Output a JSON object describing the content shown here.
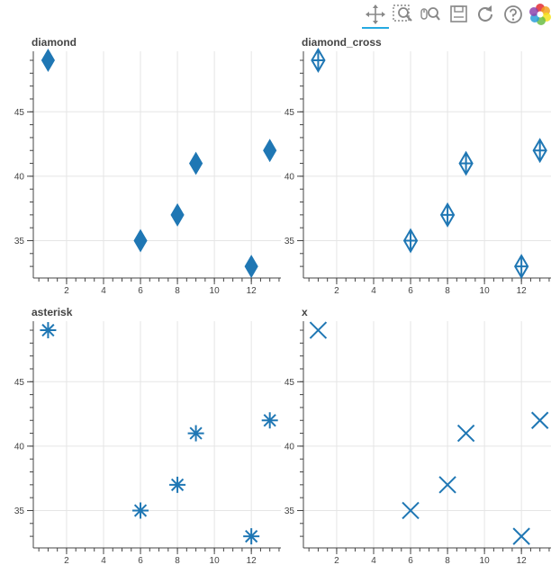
{
  "toolbar": {
    "tools": [
      {
        "id": "pan",
        "icon": "pan-icon",
        "active": true
      },
      {
        "id": "box-zoom",
        "icon": "box-zoom-icon",
        "active": false
      },
      {
        "id": "wheel-zoom",
        "icon": "wheel-zoom-icon",
        "active": false
      },
      {
        "id": "save",
        "icon": "save-icon",
        "active": false
      },
      {
        "id": "reset",
        "icon": "reset-icon",
        "active": false
      },
      {
        "id": "help",
        "icon": "help-icon",
        "active": false
      },
      {
        "id": "bokeh-logo",
        "icon": "bokeh-logo-icon",
        "active": false
      }
    ]
  },
  "colors": {
    "marker": "#1f77b4",
    "marker_fill": "#1f77b4",
    "grid": "#e5e5e5",
    "axis": "#444444",
    "active_tool": "#26aae1"
  },
  "chart_data": [
    {
      "type": "scatter",
      "title": "diamond",
      "marker": "diamond",
      "x": [
        1,
        6,
        8,
        9,
        12,
        13
      ],
      "y": [
        49,
        35,
        37,
        41,
        33,
        42
      ],
      "xticks": [
        2,
        4,
        6,
        8,
        10,
        12
      ],
      "yticks": [
        35,
        40,
        45
      ],
      "xlim": [
        0.2,
        13.6
      ],
      "ylim": [
        32.1,
        49.7
      ],
      "grid": true
    },
    {
      "type": "scatter",
      "title": "diamond_cross",
      "marker": "diamond_cross",
      "x": [
        1,
        6,
        8,
        9,
        12,
        13
      ],
      "y": [
        49,
        35,
        37,
        41,
        33,
        42
      ],
      "xticks": [
        2,
        4,
        6,
        8,
        10,
        12
      ],
      "yticks": [
        35,
        40,
        45
      ],
      "xlim": [
        0.2,
        13.6
      ],
      "ylim": [
        32.1,
        49.7
      ],
      "grid": true
    },
    {
      "type": "scatter",
      "title": "asterisk",
      "marker": "asterisk",
      "x": [
        1,
        6,
        8,
        9,
        12,
        13
      ],
      "y": [
        49,
        35,
        37,
        41,
        33,
        42
      ],
      "xticks": [
        2,
        4,
        6,
        8,
        10,
        12
      ],
      "yticks": [
        35,
        40,
        45
      ],
      "xlim": [
        0.2,
        13.6
      ],
      "ylim": [
        32.1,
        49.7
      ],
      "grid": true
    },
    {
      "type": "scatter",
      "title": "x",
      "marker": "x",
      "x": [
        1,
        6,
        8,
        9,
        12,
        13
      ],
      "y": [
        49,
        35,
        37,
        41,
        33,
        42
      ],
      "xticks": [
        2,
        4,
        6,
        8,
        10,
        12
      ],
      "yticks": [
        35,
        40,
        45
      ],
      "xlim": [
        0.2,
        13.6
      ],
      "ylim": [
        32.1,
        49.7
      ],
      "grid": true
    }
  ]
}
